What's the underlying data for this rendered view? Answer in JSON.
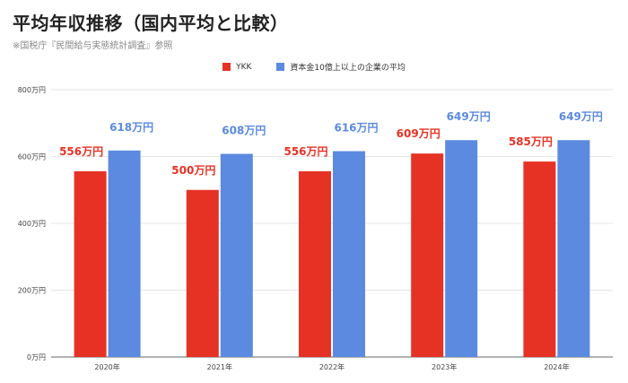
{
  "title": "平均年収推移（国内平均と比較）",
  "source": "※国税庁『民間給与実態統計調査』参照",
  "colors": {
    "ykk": "#e63225",
    "national": "#5b8ae0",
    "grid": "#e6e6e6",
    "axis": "#666666"
  },
  "chart_data": {
    "type": "bar",
    "title": "平均年収推移（国内平均と比較）",
    "categories": [
      "2020年",
      "2021年",
      "2022年",
      "2023年",
      "2024年"
    ],
    "series": [
      {
        "name": "YKK",
        "values": [
          556,
          500,
          556,
          609,
          585
        ],
        "labels": [
          "556万円",
          "500万円",
          "556万円",
          "609万円",
          "585万円"
        ]
      },
      {
        "name": "資本金10億上以上の企業の平均",
        "values": [
          618,
          608,
          616,
          649,
          649
        ],
        "labels": [
          "618万円",
          "608万円",
          "616万円",
          "649万円",
          "649万円"
        ]
      }
    ],
    "ylim": [
      0,
      800
    ],
    "yticks": [
      0,
      200,
      400,
      600,
      800
    ],
    "ytick_labels": [
      "0万円",
      "200万円",
      "400万円",
      "600万円",
      "800万円"
    ],
    "legend_position": "top",
    "grid": true
  }
}
